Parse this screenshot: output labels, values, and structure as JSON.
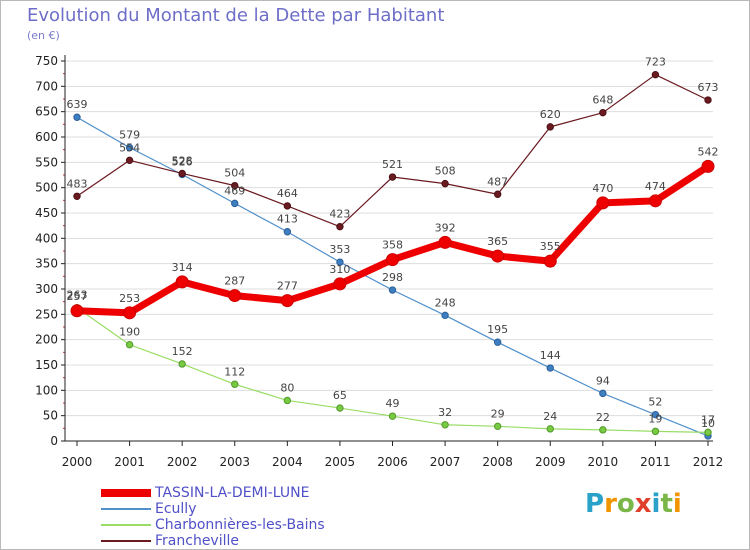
{
  "title": "Evolution du Montant de la Dette par Habitant",
  "subtitle": "(en €)",
  "brand": "Proxiti",
  "colors": {
    "tassin": "#ee0000",
    "ecully": "#4f8fca",
    "charbonnieres": "#99dd66",
    "francheville": "#6b1a20",
    "axis": "#222222",
    "grid": "#dddddd",
    "label": "#444444"
  },
  "chart_data": {
    "type": "line",
    "title": "Evolution du Montant de la Dette par Habitant",
    "ylabel": "(en €)",
    "xlabel": "",
    "x": [
      "2000",
      "2001",
      "2002",
      "2003",
      "2004",
      "2005",
      "2006",
      "2007",
      "2008",
      "2009",
      "2010",
      "2011",
      "2012"
    ],
    "ylim": [
      0,
      750
    ],
    "yticks": [
      0,
      50,
      100,
      150,
      200,
      250,
      300,
      350,
      400,
      450,
      500,
      550,
      600,
      650,
      700,
      750
    ],
    "grid": "horizontal",
    "legend": "bottom-left",
    "series": [
      {
        "name": "TASSIN-LA-DEMI-LUNE",
        "color_key": "tassin",
        "values": [
          257,
          253,
          314,
          287,
          277,
          310,
          358,
          392,
          365,
          355,
          470,
          474,
          542
        ]
      },
      {
        "name": "Ecully",
        "color_key": "ecully",
        "values": [
          639,
          579,
          526,
          469,
          413,
          353,
          298,
          248,
          195,
          144,
          94,
          52,
          10
        ]
      },
      {
        "name": "Charbonnières-les-Bains",
        "color_key": "charbonnieres",
        "values": [
          263,
          190,
          152,
          112,
          80,
          65,
          49,
          32,
          29,
          24,
          22,
          19,
          17
        ]
      },
      {
        "name": "Francheville",
        "color_key": "francheville",
        "values": [
          483,
          554,
          528,
          504,
          464,
          423,
          521,
          508,
          487,
          620,
          648,
          723,
          673
        ]
      }
    ]
  }
}
